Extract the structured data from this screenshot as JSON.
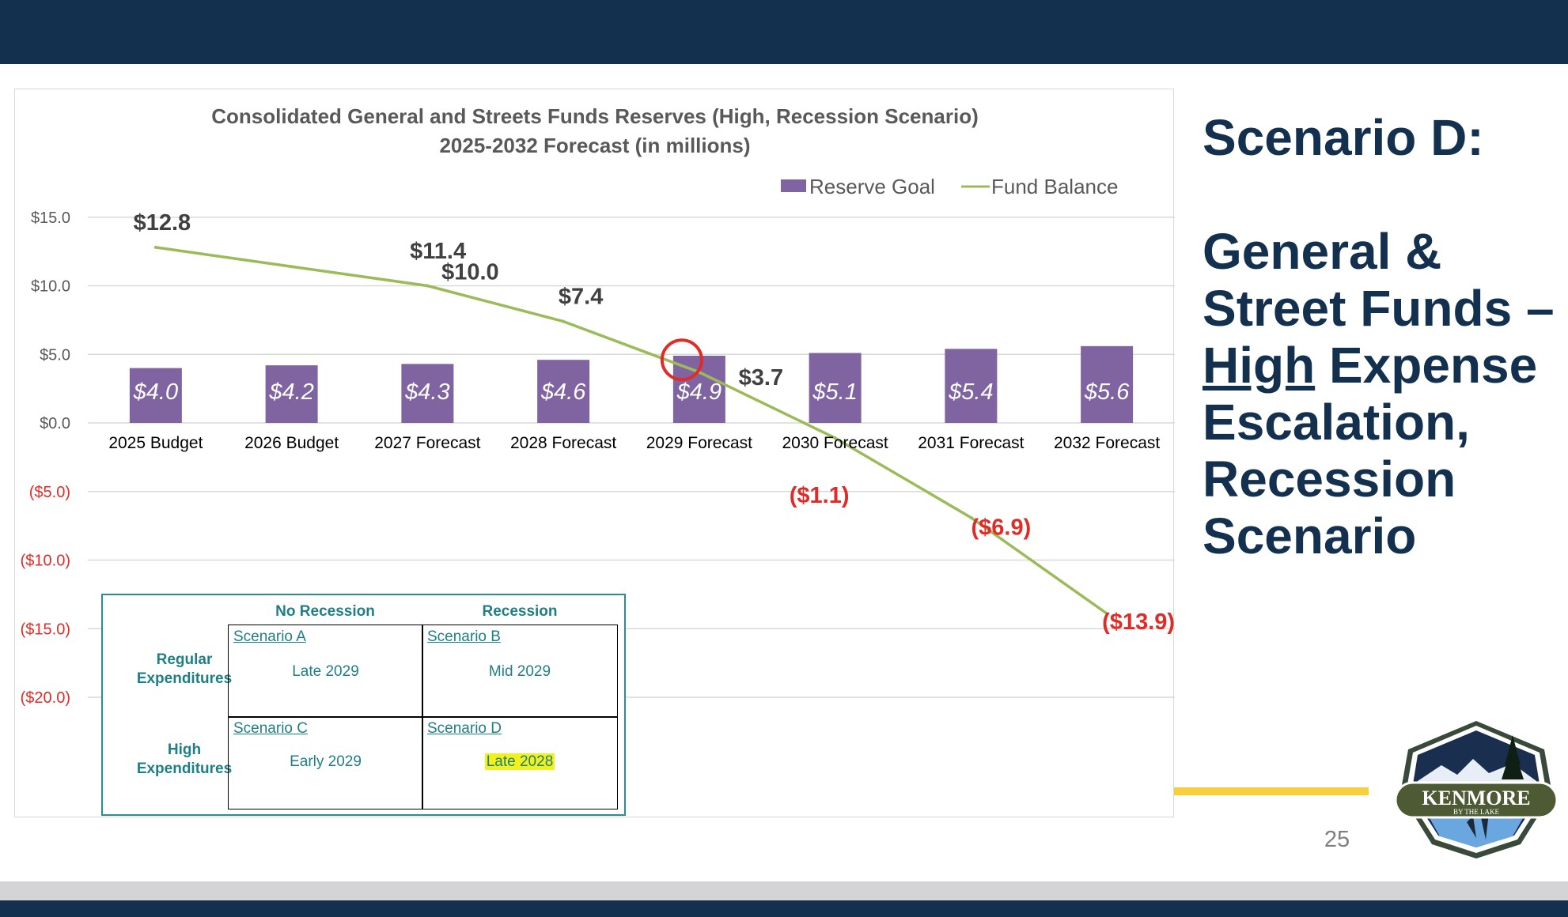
{
  "chart_data": {
    "type": "bar",
    "title": "Consolidated General and Streets Funds Reserves (High, Recession Scenario)",
    "subtitle": "2025-2032 Forecast (in millions)",
    "categories": [
      "2025 Budget",
      "2026 Budget",
      "2027 Forecast",
      "2028 Forecast",
      "2029 Forecast",
      "2030 Forecast",
      "2031 Forecast",
      "2032 Forecast"
    ],
    "series": [
      {
        "name": "Reserve Goal",
        "type": "bar",
        "color": "#8064a2",
        "values": [
          4.0,
          4.2,
          4.3,
          4.6,
          4.9,
          5.1,
          5.4,
          5.6
        ],
        "labels": [
          "$4.0",
          "$4.2",
          "$4.3",
          "$4.6",
          "$4.9",
          "$5.1",
          "$5.4",
          "$5.6"
        ]
      },
      {
        "name": "Fund Balance",
        "type": "line",
        "color": "#9bbb59",
        "values": [
          12.8,
          11.4,
          10.0,
          7.4,
          3.7,
          -1.1,
          -6.9,
          -13.9
        ],
        "labels": [
          "$12.8",
          "$11.4",
          "$10.0",
          "$7.4",
          "$3.7",
          "($1.1)",
          "($6.9)",
          "($13.9)"
        ]
      }
    ],
    "ylim": [
      -22.5,
      15
    ],
    "y_ticks": [
      15,
      10,
      5,
      0,
      -5,
      -10,
      -15,
      -20
    ],
    "y_tick_labels": [
      "$15.0",
      "$10.0",
      "$5.0",
      "$0.0",
      "($5.0)",
      "($10.0)",
      "($15.0)",
      "($20.0)"
    ],
    "negative_color": "#e02b27",
    "legend_position": "top-right",
    "grid": true,
    "highlight": "circle around 2029 Forecast crossover of Fund Balance and Reserve Goal"
  },
  "scenario_table": {
    "col_headers": [
      "No Recession",
      "Recession"
    ],
    "row_headers": [
      "Regular\nExpenditures",
      "High\nExpenditures"
    ],
    "cells": [
      [
        {
          "scenario": "Scenario A",
          "value": "Late 2029"
        },
        {
          "scenario": "Scenario B",
          "value": "Mid 2029"
        }
      ],
      [
        {
          "scenario": "Scenario C",
          "value": "Early 2029"
        },
        {
          "scenario": "Scenario D",
          "value": "Late 2028",
          "highlight": true
        }
      ]
    ]
  },
  "side_title": {
    "line1": "Scenario D:",
    "line2": "General &",
    "line3": "Street Funds –",
    "line4_underlined": "High",
    "line4_rest": " Expense",
    "line5": "Escalation,",
    "line6": "Recession",
    "line7": "Scenario"
  },
  "page_number": "25",
  "logo": {
    "text": "KENMORE",
    "subtext": "BY THE LAKE"
  },
  "colors": {
    "navy": "#14304f",
    "accent_yellow": "#f5cf3c",
    "teal": "#1e7f86"
  }
}
